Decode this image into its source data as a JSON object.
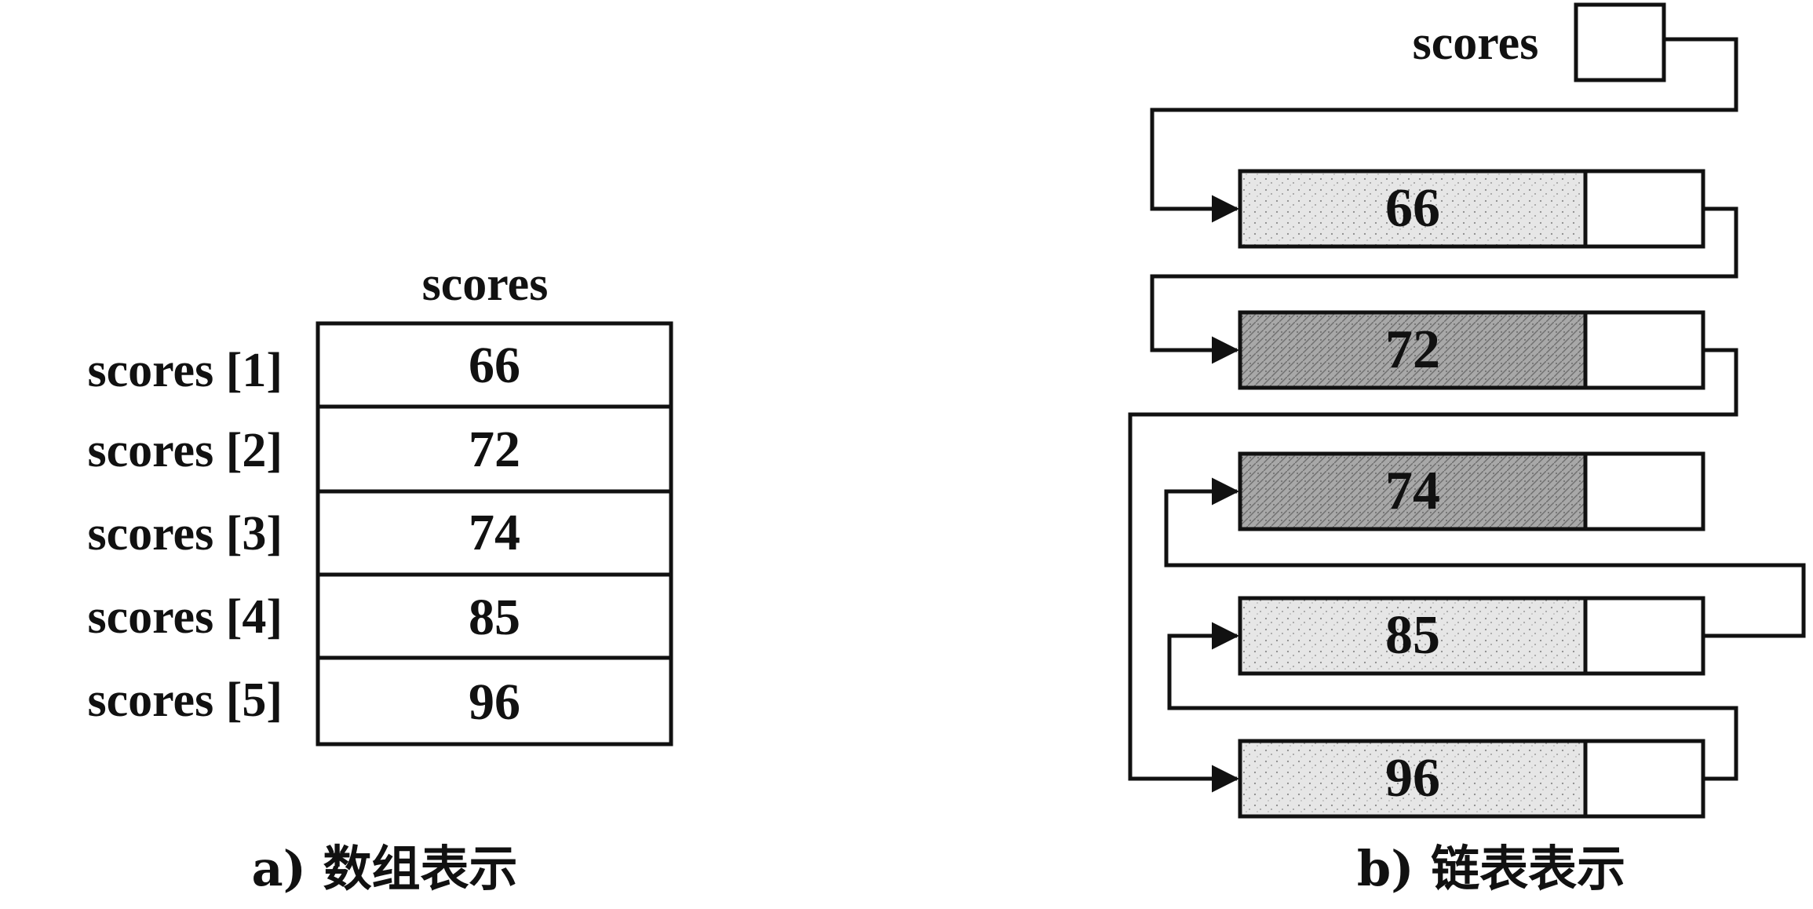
{
  "array_view": {
    "header": "scores",
    "cells": [
      {
        "index_label": "scores [1]",
        "value": "66"
      },
      {
        "index_label": "scores [2]",
        "value": "72"
      },
      {
        "index_label": "scores [3]",
        "value": "74"
      },
      {
        "index_label": "scores [4]",
        "value": "85"
      },
      {
        "index_label": "scores [5]",
        "value": "96"
      }
    ],
    "caption": "a) 数组表示"
  },
  "linked_view": {
    "head_label": "scores",
    "nodes": [
      {
        "value": "66",
        "fill": "light"
      },
      {
        "value": "72",
        "fill": "dark"
      },
      {
        "value": "74",
        "fill": "dark"
      },
      {
        "value": "85",
        "fill": "light"
      },
      {
        "value": "96",
        "fill": "light"
      }
    ],
    "caption": "b) 链表表示"
  },
  "colors": {
    "ink": "#111111",
    "paper": "#ffffff",
    "light_fill": "#e2e2e2",
    "dark_fill": "#a3a3a3"
  }
}
